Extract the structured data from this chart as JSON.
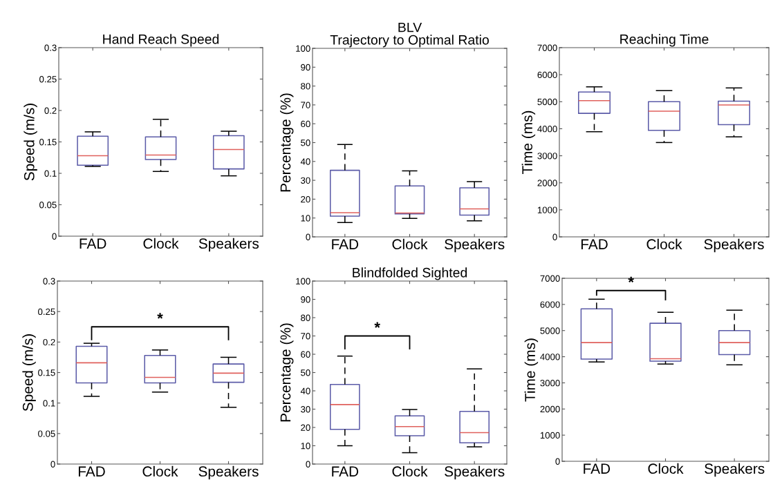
{
  "chart_data": [
    {
      "type": "box",
      "title": "Hand Reach Speed",
      "ylabel": "Speed (m/s)",
      "categories": [
        "FAD",
        "Clock",
        "Speakers"
      ],
      "ylim": [
        0,
        0.3
      ],
      "yticks": [
        0,
        0.05,
        0.1,
        0.15,
        0.2,
        0.25,
        0.3
      ],
      "grid": false,
      "boxes": [
        {
          "low": 0.111,
          "q1": 0.113,
          "median": 0.128,
          "q3": 0.159,
          "high": 0.166
        },
        {
          "low": 0.103,
          "q1": 0.122,
          "median": 0.129,
          "q3": 0.158,
          "high": 0.186
        },
        {
          "low": 0.096,
          "q1": 0.107,
          "median": 0.138,
          "q3": 0.16,
          "high": 0.167
        }
      ]
    },
    {
      "type": "box",
      "title": "BLV\nTrajectory to Optimal Ratio",
      "ylabel": "Percentage (%)",
      "categories": [
        "FAD",
        "Clock",
        "Speakers"
      ],
      "ylim": [
        0,
        100
      ],
      "yticks": [
        0,
        10,
        20,
        30,
        40,
        50,
        60,
        70,
        80,
        90,
        100
      ],
      "grid": false,
      "boxes": [
        {
          "low": 7.6,
          "q1": 11,
          "median": 12.8,
          "q3": 35.3,
          "high": 49
        },
        {
          "low": 9.8,
          "q1": 12.2,
          "median": 12.6,
          "q3": 27,
          "high": 35
        },
        {
          "low": 8.5,
          "q1": 11.5,
          "median": 14.8,
          "q3": 26,
          "high": 29.3
        }
      ]
    },
    {
      "type": "box",
      "title": "Reaching Time",
      "ylabel": "Time (ms)",
      "categories": [
        "FAD",
        "Clock",
        "Speakers"
      ],
      "ylim": [
        0,
        7000
      ],
      "yticks": [
        0,
        1000,
        2000,
        3000,
        4000,
        5000,
        6000,
        7000
      ],
      "grid": false,
      "boxes": [
        {
          "low": 3890,
          "q1": 4570,
          "median": 5040,
          "q3": 5360,
          "high": 5550
        },
        {
          "low": 3490,
          "q1": 3940,
          "median": 4650,
          "q3": 5000,
          "high": 5410
        },
        {
          "low": 3700,
          "q1": 4150,
          "median": 4880,
          "q3": 5020,
          "high": 5510
        }
      ]
    },
    {
      "type": "box",
      "ylabel": "Speed (m/s)",
      "categories": [
        "FAD",
        "Clock",
        "Speakers"
      ],
      "ylim": [
        0,
        0.3
      ],
      "yticks": [
        0,
        0.05,
        0.1,
        0.15,
        0.2,
        0.25,
        0.3
      ],
      "grid": false,
      "annotations": [
        "*"
      ],
      "boxes": [
        {
          "low": 0.111,
          "q1": 0.133,
          "median": 0.166,
          "q3": 0.193,
          "high": 0.198
        },
        {
          "low": 0.118,
          "q1": 0.133,
          "median": 0.142,
          "q3": 0.178,
          "high": 0.187
        },
        {
          "low": 0.093,
          "q1": 0.134,
          "median": 0.149,
          "q3": 0.164,
          "high": 0.175
        }
      ]
    },
    {
      "type": "box",
      "title": "Blindfolded Sighted",
      "ylabel": "Percentage (%)",
      "categories": [
        "FAD",
        "Clock",
        "Speakers"
      ],
      "ylim": [
        0,
        100
      ],
      "yticks": [
        0,
        10,
        20,
        30,
        40,
        50,
        60,
        70,
        80,
        90,
        100
      ],
      "grid": false,
      "annotations": [
        "*"
      ],
      "boxes": [
        {
          "low": 10,
          "q1": 19,
          "median": 32.5,
          "q3": 43.5,
          "high": 59
        },
        {
          "low": 6.2,
          "q1": 15.5,
          "median": 20.5,
          "q3": 26.3,
          "high": 29.8
        },
        {
          "low": 9.4,
          "q1": 11.6,
          "median": 17.2,
          "q3": 28.8,
          "high": 52
        }
      ]
    },
    {
      "type": "box",
      "ylabel": "Time (ms)",
      "categories": [
        "FAD",
        "Clock",
        "Speakers"
      ],
      "ylim": [
        0,
        7000
      ],
      "yticks": [
        0,
        1000,
        2000,
        3000,
        4000,
        5000,
        6000,
        7000
      ],
      "grid": false,
      "annotations": [
        "*"
      ],
      "boxes": [
        {
          "low": 3800,
          "q1": 3910,
          "median": 4540,
          "q3": 5830,
          "high": 6200
        },
        {
          "low": 3720,
          "q1": 3830,
          "median": 3920,
          "q3": 5280,
          "high": 5700
        },
        {
          "low": 3690,
          "q1": 4080,
          "median": 4540,
          "q3": 5000,
          "high": 5780
        }
      ]
    }
  ]
}
